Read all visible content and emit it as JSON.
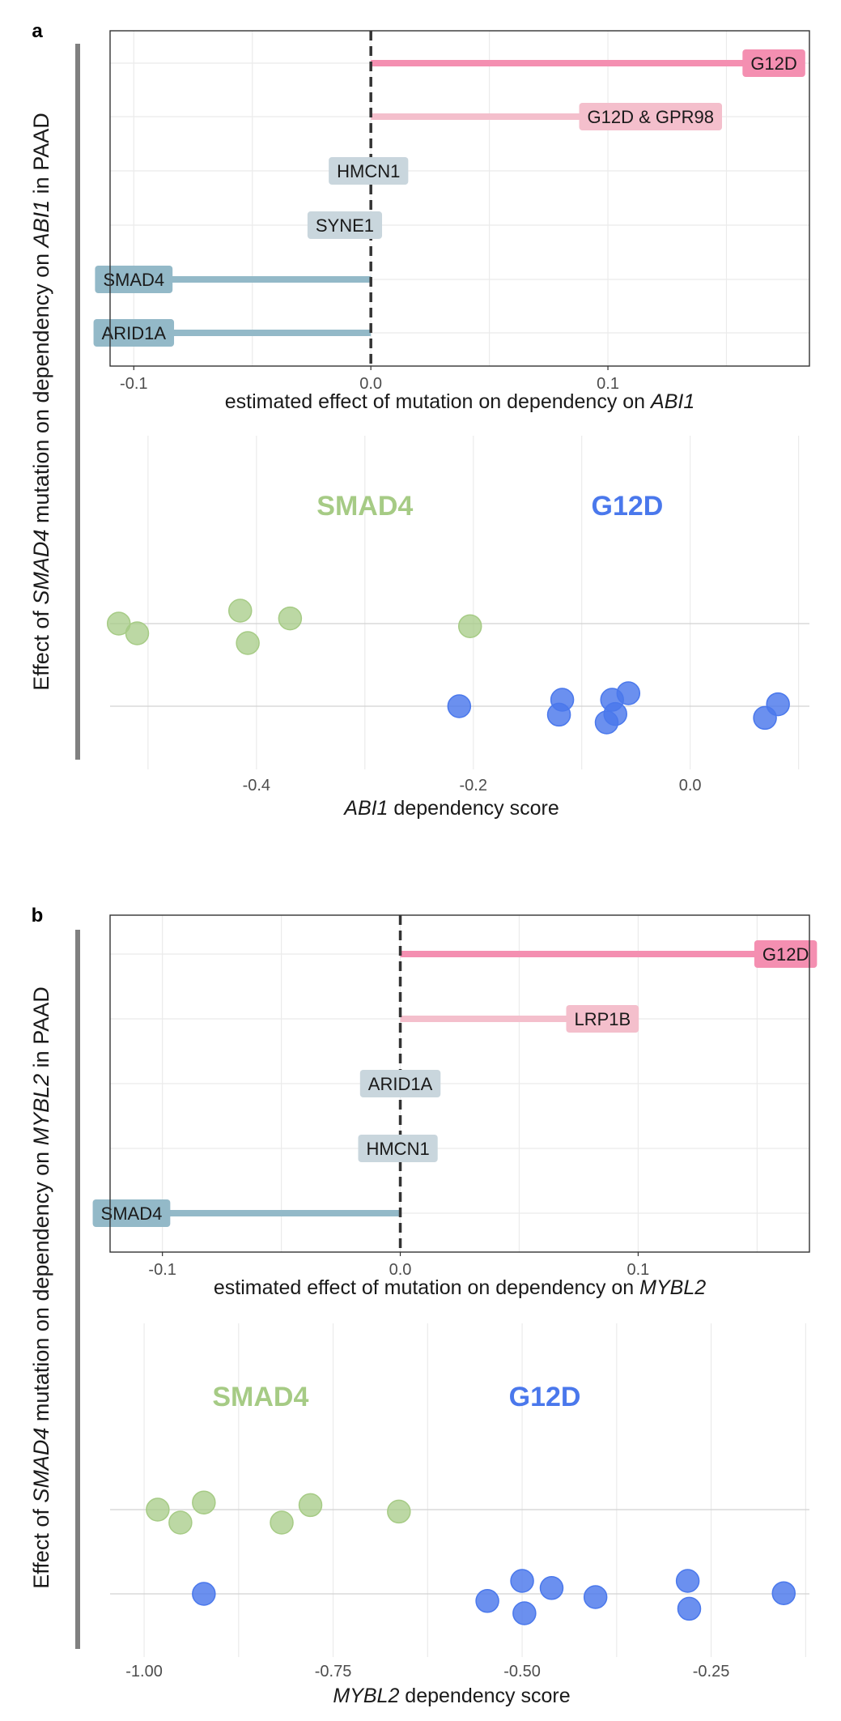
{
  "colors": {
    "pos_strong": "#f48fb1",
    "pos_light": "#f4bfcc",
    "neg_light": "#c9d6dd",
    "neg_strong": "#93b9c8",
    "smad4": "#a6cb85",
    "g12d": "#4a78ec",
    "grid": "#ebebeb",
    "hline": "#d2d2d2",
    "side_bar": "#808080"
  },
  "side_label": {
    "prefix": "Effect of ",
    "gene": "SMAD4",
    "suffix": " mutation on dependency on "
  },
  "chart_data": [
    {
      "panel": "a",
      "type": "bar",
      "orientation": "horizontal",
      "target_gene": "ABI1",
      "side_gene": "ABI1",
      "side_tail": " in PAAD",
      "xlabel_prefix": "estimated effect of mutation on dependency on ",
      "xlabel_gene": "ABI1",
      "xlim": [
        -0.11,
        0.185
      ],
      "xticks": [
        -0.1,
        0.0,
        0.1
      ],
      "xtick_labels": [
        "-0.1",
        "0.0",
        "0.1"
      ],
      "categories": [
        "G12D",
        "G12D & GPR98",
        "HMCN1",
        "SYNE1",
        "SMAD4",
        "ARID1A"
      ],
      "values": [
        0.17,
        0.118,
        -0.001,
        -0.011,
        -0.1,
        -0.1
      ],
      "bar_color_keys": [
        "pos_strong",
        "pos_light",
        "neg_light",
        "neg_light",
        "neg_strong",
        "neg_strong"
      ]
    },
    {
      "panel": "a",
      "type": "scatter",
      "xlabel_gene": "ABI1",
      "xlabel_suffix": " dependency score",
      "xlim": [
        -0.535,
        0.11
      ],
      "xticks": [
        -0.4,
        -0.2,
        0.0
      ],
      "xtick_labels": [
        "-0.4",
        "-0.2",
        "0.0"
      ],
      "groups": [
        {
          "name": "SMAD4",
          "label_x": -0.3,
          "color_key": "smad4",
          "points": [
            {
              "x": -0.527,
              "jitter": 0.0
            },
            {
              "x": -0.51,
              "jitter": -0.15
            },
            {
              "x": -0.415,
              "jitter": 0.2
            },
            {
              "x": -0.408,
              "jitter": -0.3
            },
            {
              "x": -0.369,
              "jitter": 0.08
            },
            {
              "x": -0.203,
              "jitter": -0.04
            }
          ]
        },
        {
          "name": "G12D",
          "label_x": -0.058,
          "color_key": "g12d",
          "points": [
            {
              "x": -0.213,
              "jitter": 0.0
            },
            {
              "x": -0.118,
              "jitter": 0.1
            },
            {
              "x": -0.121,
              "jitter": -0.13
            },
            {
              "x": -0.077,
              "jitter": -0.25
            },
            {
              "x": -0.072,
              "jitter": 0.1
            },
            {
              "x": -0.069,
              "jitter": -0.12
            },
            {
              "x": -0.057,
              "jitter": 0.2
            },
            {
              "x": 0.069,
              "jitter": -0.18
            },
            {
              "x": 0.081,
              "jitter": 0.03
            }
          ]
        }
      ]
    },
    {
      "panel": "b",
      "type": "bar",
      "orientation": "horizontal",
      "target_gene": "MYBL2",
      "side_gene": "MYBL2",
      "side_tail": " in PAAD",
      "xlabel_prefix": "estimated effect of mutation on dependency on ",
      "xlabel_gene": "MYBL2",
      "xlim": [
        -0.122,
        0.172
      ],
      "xticks": [
        -0.1,
        0.0,
        0.1
      ],
      "xtick_labels": [
        "-0.1",
        "0.0",
        "0.1"
      ],
      "categories": [
        "G12D",
        "LRP1B",
        "ARID1A",
        "HMCN1",
        "SMAD4"
      ],
      "values": [
        0.162,
        0.085,
        0.0,
        -0.001,
        -0.113
      ],
      "bar_color_keys": [
        "pos_strong",
        "pos_light",
        "neg_light",
        "neg_light",
        "neg_strong"
      ]
    },
    {
      "panel": "b",
      "type": "scatter",
      "xlabel_gene": "MYBL2",
      "xlabel_suffix": " dependency score",
      "xlim": [
        -1.045,
        -0.12
      ],
      "xticks": [
        -1.0,
        -0.75,
        -0.5,
        -0.25
      ],
      "xtick_labels": [
        "-1.00",
        "-0.75",
        "-0.50",
        "-0.25"
      ],
      "groups": [
        {
          "name": "SMAD4",
          "label_x": -0.846,
          "color_key": "smad4",
          "points": [
            {
              "x": -0.982,
              "jitter": 0.0
            },
            {
              "x": -0.952,
              "jitter": -0.2
            },
            {
              "x": -0.921,
              "jitter": 0.11
            },
            {
              "x": -0.818,
              "jitter": -0.2
            },
            {
              "x": -0.78,
              "jitter": 0.07
            },
            {
              "x": -0.663,
              "jitter": -0.03
            }
          ]
        },
        {
          "name": "G12D",
          "label_x": -0.47,
          "color_key": "g12d",
          "points": [
            {
              "x": -0.921,
              "jitter": 0.0
            },
            {
              "x": -0.546,
              "jitter": -0.11
            },
            {
              "x": -0.5,
              "jitter": 0.2
            },
            {
              "x": -0.497,
              "jitter": -0.3
            },
            {
              "x": -0.461,
              "jitter": 0.09
            },
            {
              "x": -0.403,
              "jitter": -0.05
            },
            {
              "x": -0.281,
              "jitter": 0.2
            },
            {
              "x": -0.279,
              "jitter": -0.23
            },
            {
              "x": -0.154,
              "jitter": 0.01
            }
          ]
        }
      ]
    }
  ]
}
